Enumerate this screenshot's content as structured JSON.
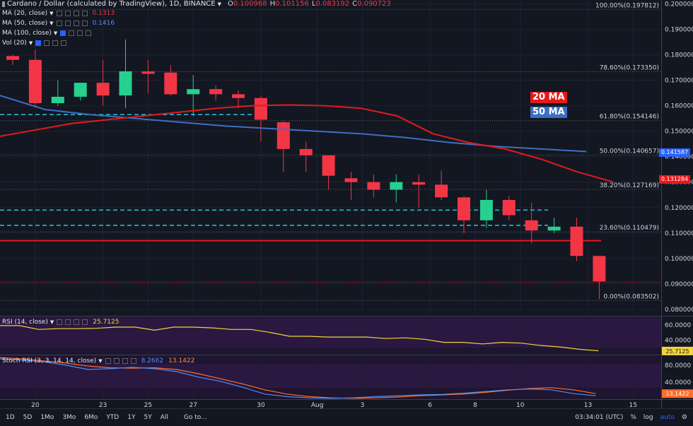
{
  "header": {
    "symbol_title": "Cardano / Dollar (calculated by TradingView), 1D, BINANCE",
    "ohlc": [
      {
        "k": "O",
        "v": "0.100968"
      },
      {
        "k": "H",
        "v": "0.101156"
      },
      {
        "k": "L",
        "v": "0.083192"
      },
      {
        "k": "C",
        "v": "0.090723"
      }
    ]
  },
  "indicators": [
    {
      "label": "MA (20, close)",
      "value": "0.1313",
      "color": "#f23645"
    },
    {
      "label": "MA (50, close)",
      "value": "0.1416",
      "color": "#4f8ff7"
    },
    {
      "label": "MA (100, close)",
      "value": "",
      "color": "#4f8ff7"
    },
    {
      "label": "Vol (20)",
      "value": "",
      "color": "#4f8ff7"
    }
  ],
  "ma_labels": {
    "ma20": "20 MA",
    "ma50": "50 MA"
  },
  "price_tags": {
    "ma50": "0.141587",
    "ma20": "0.131284"
  },
  "fib_levels": [
    {
      "label": "100.00%(0.197812)",
      "price": 0.197812
    },
    {
      "label": "78.60%(0.173350)",
      "price": 0.17335
    },
    {
      "label": "61.80%(0.154146)",
      "price": 0.154146
    },
    {
      "label": "50.00%(0.140657)",
      "price": 0.140657
    },
    {
      "label": "38.20%(0.127169)",
      "price": 0.127169
    },
    {
      "label": "23.60%(0.110479)",
      "price": 0.110479
    },
    {
      "label": "0.00%(0.083502)",
      "price": 0.083502
    }
  ],
  "price_axis": [
    "0.200000",
    "0.190000",
    "0.180000",
    "0.170000",
    "0.160000",
    "0.150000",
    "0.140000",
    "0.130000",
    "0.120000",
    "0.110000",
    "0.100000",
    "0.090000",
    "0.080000"
  ],
  "rsi": {
    "label": "RSI (14, close)",
    "value": "25.7125",
    "axis": [
      "60.0000",
      "40.0000"
    ],
    "series": [
      59,
      59,
      54,
      55,
      55,
      55.5,
      57,
      57,
      53,
      57,
      57,
      56,
      54,
      54,
      50,
      45,
      45,
      44,
      44,
      44,
      42,
      43,
      41,
      37,
      37,
      35,
      37,
      36,
      33,
      31,
      28,
      26
    ]
  },
  "stoch": {
    "label": "Stoch RSI (3, 3, 14, 14, close)",
    "k_value": "8.2662",
    "d_value": "13.1422",
    "axis": [
      "80.0000",
      "40.0000"
    ]
  },
  "time_axis": [
    "20",
    "23",
    "25",
    "27",
    "30",
    "Aug",
    "3",
    "6",
    "8",
    "10",
    "13",
    "15"
  ],
  "bottom_bar": {
    "ranges": [
      "1D",
      "5D",
      "1Mo",
      "3Mo",
      "6Mo",
      "YTD",
      "1Y",
      "5Y",
      "All"
    ],
    "goto": "Go to...",
    "clock": "03:34:01 (UTC)",
    "percent": "%",
    "log": "log",
    "auto": "auto"
  },
  "chart_data": {
    "type": "candlestick",
    "title": "Cardano / Dollar (calculated by TradingView), 1D, BINANCE",
    "ylim": [
      0.0775,
      0.2015
    ],
    "candles": [
      [
        0.1795,
        0.18,
        0.176,
        0.178
      ],
      [
        0.178,
        0.182,
        0.16,
        0.161
      ],
      [
        0.161,
        0.17,
        0.16,
        0.1635
      ],
      [
        0.1635,
        0.169,
        0.162,
        0.169
      ],
      [
        0.169,
        0.178,
        0.16,
        0.164
      ],
      [
        0.164,
        0.186,
        0.159,
        0.1735
      ],
      [
        0.1735,
        0.178,
        0.165,
        0.1725
      ],
      [
        0.173,
        0.176,
        0.164,
        0.1645
      ],
      [
        0.1645,
        0.172,
        0.156,
        0.1665
      ],
      [
        0.1665,
        0.168,
        0.162,
        0.1645
      ],
      [
        0.1645,
        0.166,
        0.159,
        0.163
      ],
      [
        0.163,
        0.164,
        0.146,
        0.1545
      ],
      [
        0.1535,
        0.154,
        0.134,
        0.143
      ],
      [
        0.143,
        0.146,
        0.134,
        0.1405
      ],
      [
        0.1405,
        0.1405,
        0.127,
        0.1325
      ],
      [
        0.1315,
        0.134,
        0.123,
        0.13
      ],
      [
        0.13,
        0.133,
        0.124,
        0.127
      ],
      [
        0.127,
        0.133,
        0.122,
        0.13
      ],
      [
        0.13,
        0.133,
        0.12,
        0.129
      ],
      [
        0.129,
        0.1345,
        0.123,
        0.124
      ],
      [
        0.124,
        0.1245,
        0.11,
        0.115
      ],
      [
        0.115,
        0.127,
        0.112,
        0.123
      ],
      [
        0.123,
        0.1245,
        0.115,
        0.117
      ],
      [
        0.115,
        0.122,
        0.106,
        0.111
      ],
      [
        0.111,
        0.116,
        0.11,
        0.1125
      ],
      [
        0.1125,
        0.116,
        0.099,
        0.101
      ],
      [
        0.101,
        0.101,
        0.084,
        0.091
      ]
    ],
    "ma20": [
      0.148,
      0.1505,
      0.153,
      0.1545,
      0.156,
      0.1575,
      0.159,
      0.16,
      0.1603,
      0.16,
      0.159,
      0.156,
      0.149,
      0.1455,
      0.143,
      0.139,
      0.134,
      0.13
    ],
    "ma50": [
      0.164,
      0.1585,
      0.1565,
      0.155,
      0.1535,
      0.152,
      0.151,
      0.15,
      0.149,
      0.1475,
      0.1455,
      0.144,
      0.143,
      0.142
    ],
    "horizontal_lines": [
      0.1565,
      0.119,
      0.113,
      0.107
    ],
    "last_price": 0.090723
  }
}
